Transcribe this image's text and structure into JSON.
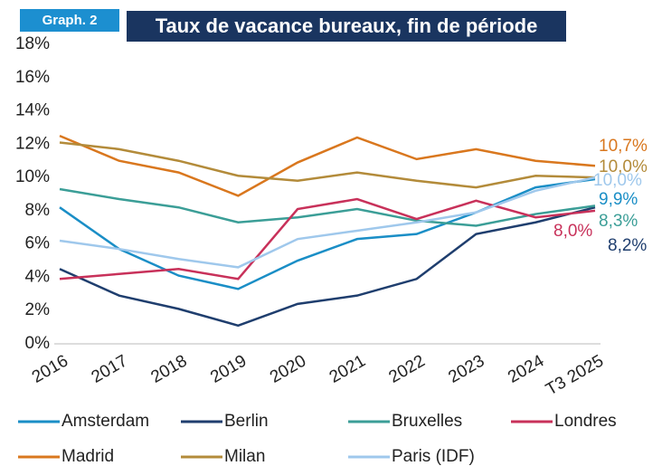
{
  "chart_data": {
    "type": "line",
    "badge": "Graph. 2",
    "title": "Taux de vacance bureaux, fin de période",
    "categories": [
      "2016",
      "2017",
      "2018",
      "2019",
      "2020",
      "2021",
      "2022",
      "2023",
      "2024",
      "T3 2025"
    ],
    "ylim": [
      0,
      18
    ],
    "yticks": [
      {
        "value": 0,
        "label": "0%"
      },
      {
        "value": 2,
        "label": "2%"
      },
      {
        "value": 4,
        "label": "4%"
      },
      {
        "value": 6,
        "label": "6%"
      },
      {
        "value": 8,
        "label": "8%"
      },
      {
        "value": 10,
        "label": "10%"
      },
      {
        "value": 12,
        "label": "12%"
      },
      {
        "value": 14,
        "label": "14%"
      },
      {
        "value": 16,
        "label": "16%"
      },
      {
        "value": 18,
        "label": "18%"
      }
    ],
    "grid": false,
    "series": [
      {
        "name": "Amsterdam",
        "color": "#1a8ec6",
        "values": [
          8.2,
          5.7,
          4.1,
          3.3,
          5.0,
          6.3,
          6.6,
          7.9,
          9.4,
          9.9
        ],
        "value_labels": [
          null,
          null,
          null,
          null,
          null,
          null,
          null,
          null,
          null,
          "9,9%"
        ]
      },
      {
        "name": "Berlin",
        "color": "#1f3e6e",
        "values": [
          4.5,
          2.9,
          2.1,
          1.1,
          2.4,
          2.9,
          3.9,
          6.6,
          7.3,
          8.2
        ],
        "value_labels": [
          null,
          null,
          null,
          null,
          null,
          null,
          null,
          null,
          null,
          "8,2%"
        ]
      },
      {
        "name": "Bruxelles",
        "color": "#3b9e97",
        "values": [
          9.3,
          8.7,
          8.2,
          7.3,
          7.6,
          8.1,
          7.4,
          7.1,
          7.8,
          8.3
        ],
        "value_labels": [
          null,
          null,
          null,
          null,
          null,
          null,
          null,
          null,
          null,
          "8,3%"
        ]
      },
      {
        "name": "Londres",
        "color": "#c8315a",
        "values": [
          3.9,
          4.2,
          4.5,
          3.9,
          8.1,
          8.7,
          7.5,
          8.6,
          7.6,
          8.0
        ],
        "value_labels": [
          null,
          null,
          null,
          null,
          null,
          null,
          null,
          null,
          null,
          "8,0%"
        ]
      },
      {
        "name": "Madrid",
        "color": "#d9771e",
        "values": [
          12.5,
          11.0,
          10.3,
          8.9,
          10.9,
          12.4,
          11.1,
          11.7,
          11.0,
          10.7
        ],
        "value_labels": [
          null,
          null,
          null,
          null,
          null,
          null,
          null,
          null,
          null,
          "10,7%"
        ]
      },
      {
        "name": "Milan",
        "color": "#b38b3a",
        "values": [
          12.1,
          11.7,
          11.0,
          10.1,
          9.8,
          10.3,
          9.8,
          9.4,
          10.1,
          10.0
        ],
        "value_labels": [
          null,
          null,
          null,
          null,
          null,
          null,
          null,
          null,
          null,
          "10,0%"
        ]
      },
      {
        "name": "Paris (IDF)",
        "color": "#9fc8ec",
        "values": [
          6.2,
          5.7,
          5.1,
          4.6,
          6.3,
          6.8,
          7.3,
          7.9,
          9.2,
          10.0
        ],
        "value_labels": [
          null,
          null,
          null,
          null,
          null,
          null,
          null,
          null,
          null,
          "10,0%"
        ]
      }
    ]
  }
}
